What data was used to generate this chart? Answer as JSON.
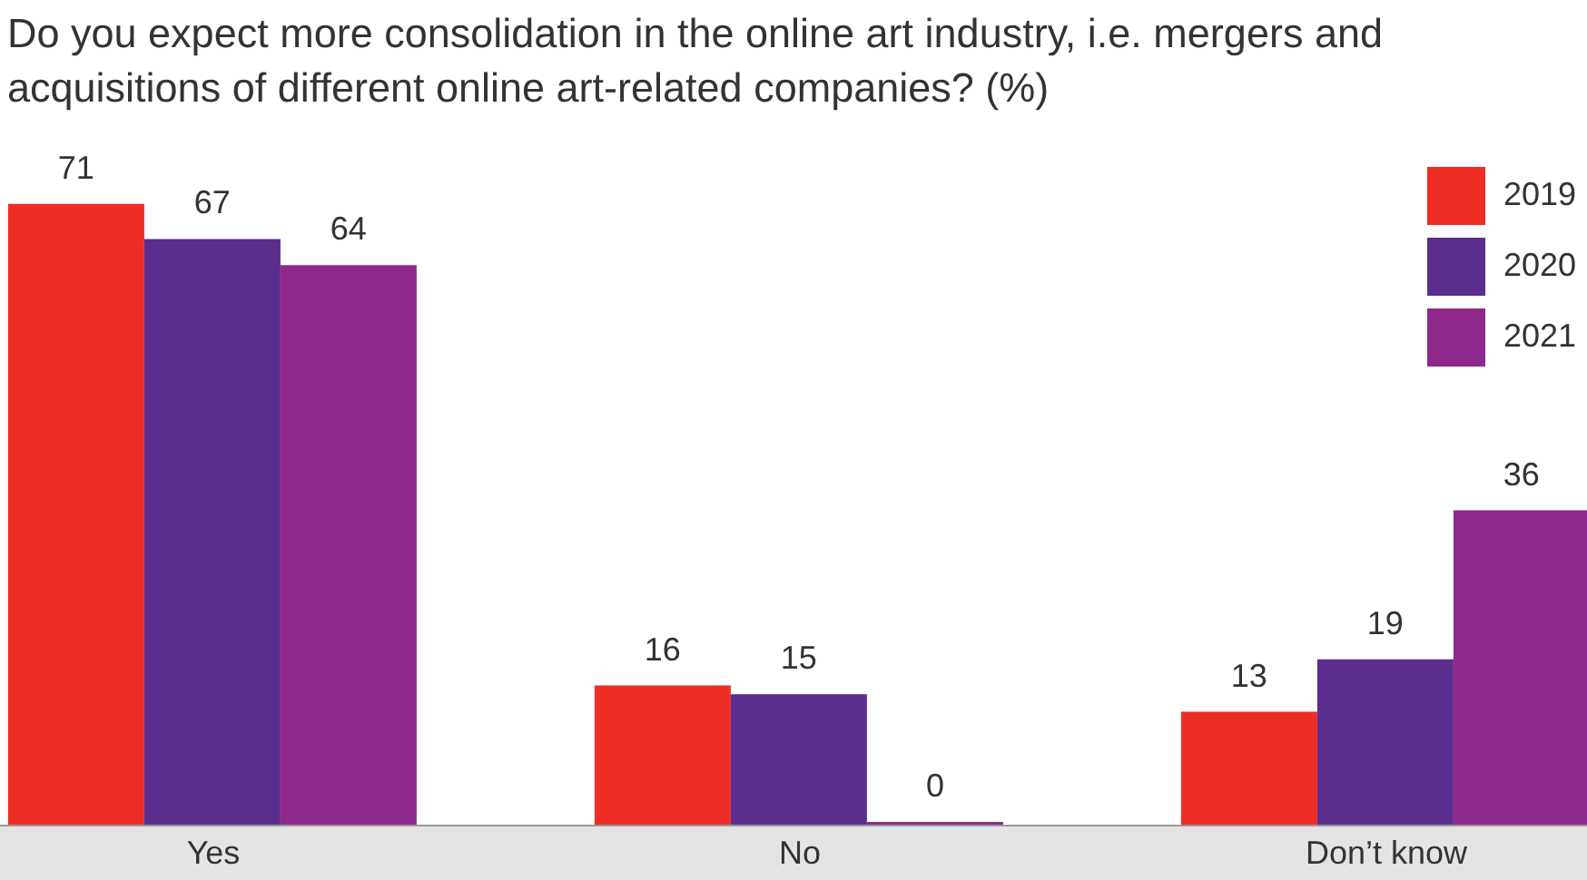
{
  "chart_data": {
    "type": "bar",
    "title": "Do you expect more consolidation in the online art industry, i.e. mergers and acquisitions of different online art-related companies? (%)",
    "categories": [
      "Yes",
      "No",
      "Don’t know"
    ],
    "series": [
      {
        "name": "2019",
        "color": "#ee2e24",
        "values": [
          71,
          16,
          13
        ]
      },
      {
        "name": "2020",
        "color": "#5b2d8e",
        "values": [
          67,
          15,
          19
        ]
      },
      {
        "name": "2021",
        "color": "#8e288c",
        "values": [
          64,
          0,
          36
        ]
      }
    ],
    "data_labels": true,
    "legend": "top right",
    "grid": false
  }
}
